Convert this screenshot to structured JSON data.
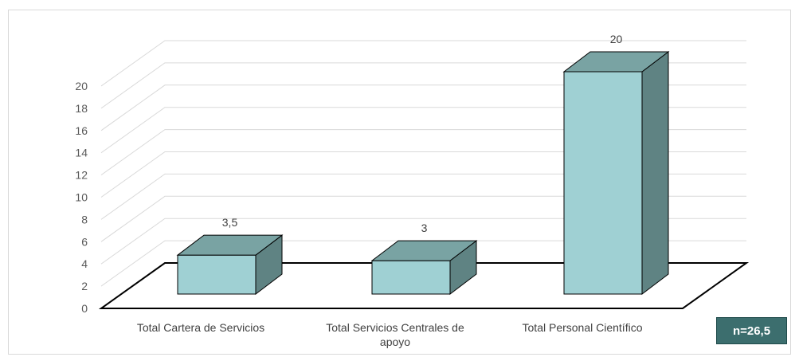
{
  "chart_data": {
    "type": "bar",
    "categories": [
      "Total Cartera de Servicios",
      "Total Servicios Centrales de apoyo",
      "Total Personal Científico"
    ],
    "values": [
      3.5,
      3,
      20
    ],
    "data_labels": [
      "3,5",
      "3",
      "20"
    ],
    "y_ticks": [
      "0",
      "2",
      "4",
      "6",
      "8",
      "10",
      "12",
      "14",
      "16",
      "18",
      "20"
    ],
    "ylim": [
      0,
      20
    ],
    "grid": true,
    "colors": {
      "front": "#9fd0d3",
      "top": "#79a3a3",
      "side": "#5f8383",
      "grid": "#d9d9d9",
      "floor": "#000000"
    }
  },
  "note_badge": "n=26,5"
}
